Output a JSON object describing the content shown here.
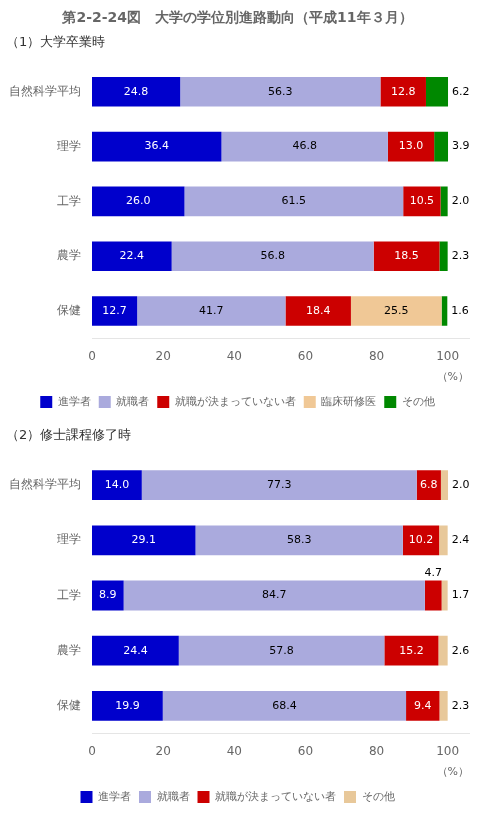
{
  "chart_data": [
    {
      "type": "bar",
      "orientation": "horizontal",
      "stacked": true,
      "data_labels": true,
      "grid": false,
      "legend": "bottom",
      "title": "第2-2-24図　大学の学位別進路動向（平成11年３月）",
      "subtitle": "（1）大学卒業時",
      "xlabel": "（%）",
      "categories": [
        "自然科学平均",
        "理学",
        "工学",
        "農学",
        "保健"
      ],
      "xlim": [
        0,
        106
      ],
      "xticks": [
        0,
        20,
        40,
        60,
        80,
        100
      ],
      "series": [
        {
          "name": "進学者",
          "color": "#0000cc",
          "values": [
            24.8,
            36.4,
            26.0,
            22.4,
            12.7
          ],
          "value_labels": [
            "24.8",
            "36.4",
            "26.0",
            "22.4",
            "12.7"
          ]
        },
        {
          "name": "就職者",
          "color": "#aaaadd",
          "values": [
            56.3,
            46.8,
            61.5,
            56.8,
            41.7
          ],
          "value_labels": [
            "56.3",
            "46.8",
            "61.5",
            "56.8",
            "41.7"
          ]
        },
        {
          "name": "就職が決まっていない者",
          "color": "#cc0000",
          "values": [
            12.8,
            13.0,
            10.5,
            18.5,
            18.4
          ],
          "value_labels": [
            "12.8",
            "13.0",
            "10.5",
            "18.5",
            "18.4"
          ]
        },
        {
          "name": "臨床研修医",
          "color": "#f0c896",
          "values": [
            0.0,
            0.0,
            0.0,
            0.0,
            25.5
          ],
          "value_labels": [
            null,
            null,
            null,
            null,
            "25.5"
          ]
        },
        {
          "name": "その他",
          "color": "#008800",
          "values": [
            6.2,
            3.9,
            2.0,
            2.3,
            1.6
          ],
          "value_labels": [
            "6.2",
            "3.9",
            "2.0",
            "2.3",
            "1.6"
          ]
        }
      ]
    },
    {
      "type": "bar",
      "orientation": "horizontal",
      "stacked": true,
      "data_labels": true,
      "grid": false,
      "legend": "bottom",
      "subtitle": "（2）修士課程修了時",
      "xlabel": "（%）",
      "categories": [
        "自然科学平均",
        "理学",
        "工学",
        "農学",
        "保健"
      ],
      "xlim": [
        0,
        106
      ],
      "xticks": [
        0,
        20,
        40,
        60,
        80,
        100
      ],
      "series": [
        {
          "name": "進学者",
          "color": "#0000cc",
          "values": [
            14.0,
            29.1,
            8.9,
            24.4,
            19.9
          ],
          "value_labels": [
            "14.0",
            "29.1",
            "8.9",
            "24.4",
            "19.9"
          ]
        },
        {
          "name": "就職者",
          "color": "#aaaadd",
          "values": [
            77.3,
            58.3,
            84.7,
            57.8,
            68.4
          ],
          "value_labels": [
            "77.3",
            "58.3",
            "84.7",
            "57.8",
            "68.4"
          ]
        },
        {
          "name": "就職が決まっていない者",
          "color": "#cc0000",
          "values": [
            6.8,
            10.2,
            4.7,
            15.2,
            9.4
          ],
          "value_labels": [
            "6.8",
            "10.2",
            "4.7",
            "15.2",
            "9.4"
          ]
        },
        {
          "name": "その他",
          "color": "#e8c89a",
          "values": [
            2.0,
            2.4,
            1.7,
            2.6,
            2.3
          ],
          "value_labels": [
            "2.0",
            "2.4",
            "1.7",
            "2.6",
            "2.3"
          ]
        }
      ]
    }
  ]
}
